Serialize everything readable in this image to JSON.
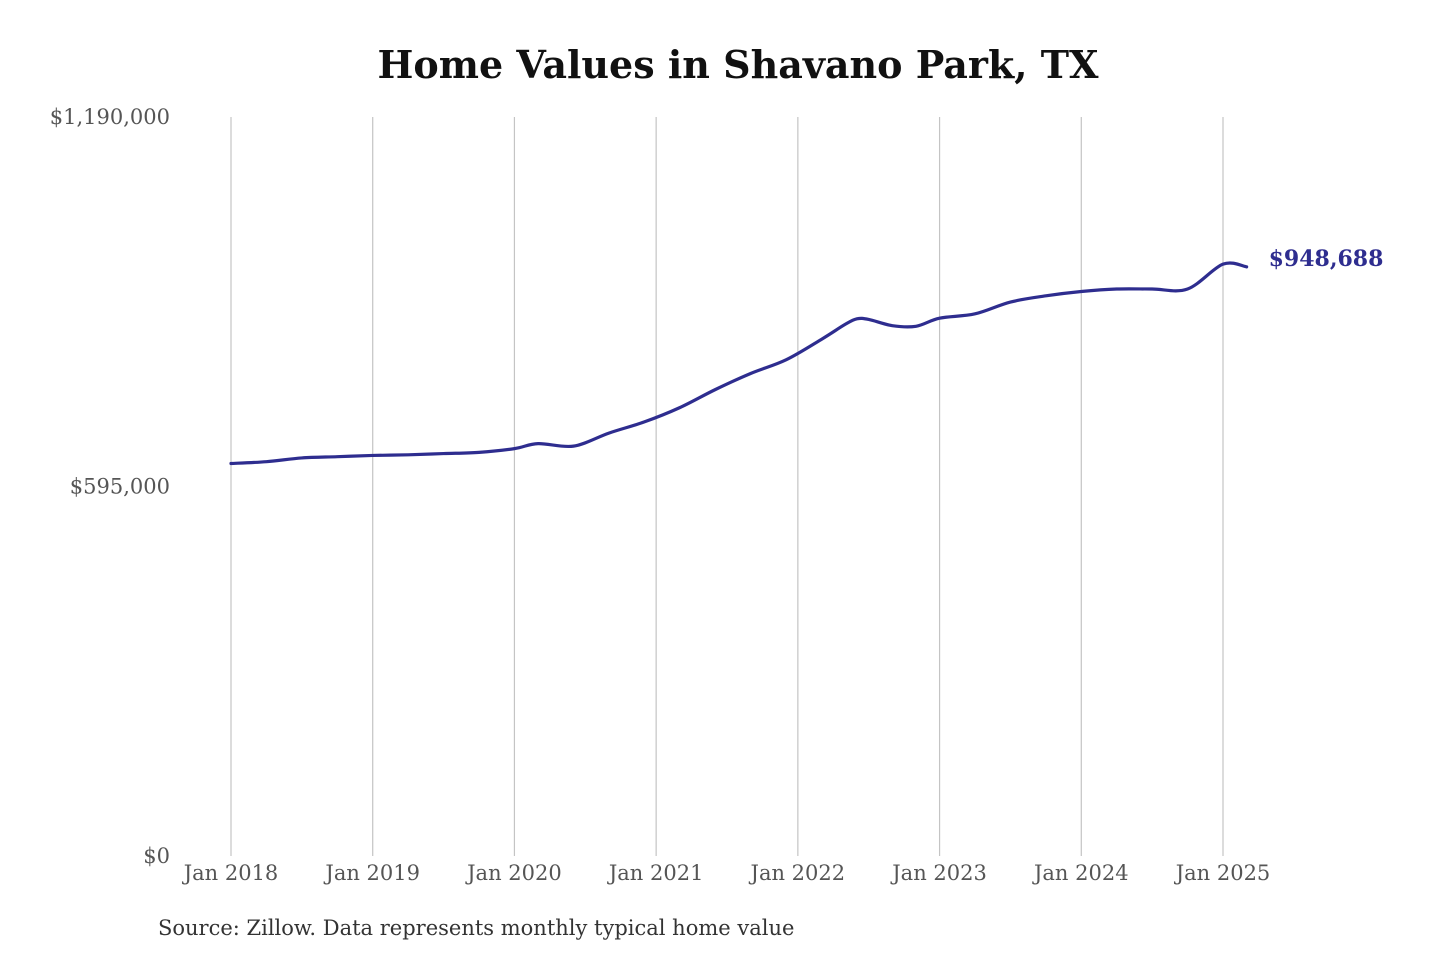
{
  "chart_data": {
    "type": "line",
    "title": "Home Values in Shavano Park, TX",
    "source_note": "Source: Zillow. Data represents monthly typical home value",
    "y_ticks": [
      {
        "value": 0,
        "label": "$0"
      },
      {
        "value": 595000,
        "label": "$595,000"
      },
      {
        "value": 1190000,
        "label": "$1,190,000"
      }
    ],
    "ylim": [
      0,
      1190000
    ],
    "x_ticks": [
      "Jan 2018",
      "Jan 2019",
      "Jan 2020",
      "Jan 2021",
      "Jan 2022",
      "Jan 2023",
      "Jan 2024",
      "Jan 2025"
    ],
    "grid": "vertical",
    "line_color": "#2e2d8f",
    "end_label": "$948,688",
    "series": [
      {
        "x": [
          "2018-01",
          "2018-04",
          "2018-07",
          "2018-10",
          "2019-01",
          "2019-04",
          "2019-07",
          "2019-10",
          "2020-01",
          "2020-03",
          "2020-06",
          "2020-09",
          "2020-12",
          "2021-03",
          "2021-06",
          "2021-09",
          "2021-12",
          "2022-03",
          "2022-05",
          "2022-06",
          "2022-07",
          "2022-09",
          "2022-11",
          "2023-01",
          "2023-04",
          "2023-07",
          "2023-10",
          "2024-01",
          "2024-04",
          "2024-07",
          "2024-10",
          "2025-01",
          "2025-03"
        ],
        "values": [
          632000,
          635000,
          641000,
          643000,
          645000,
          646000,
          648000,
          650000,
          656000,
          664000,
          660000,
          681000,
          699000,
          722000,
          751000,
          777000,
          799000,
          832000,
          856000,
          865000,
          864000,
          854000,
          853000,
          866000,
          873000,
          892000,
          902000,
          909000,
          913000,
          913000,
          913000,
          953000,
          948688
        ]
      }
    ]
  }
}
